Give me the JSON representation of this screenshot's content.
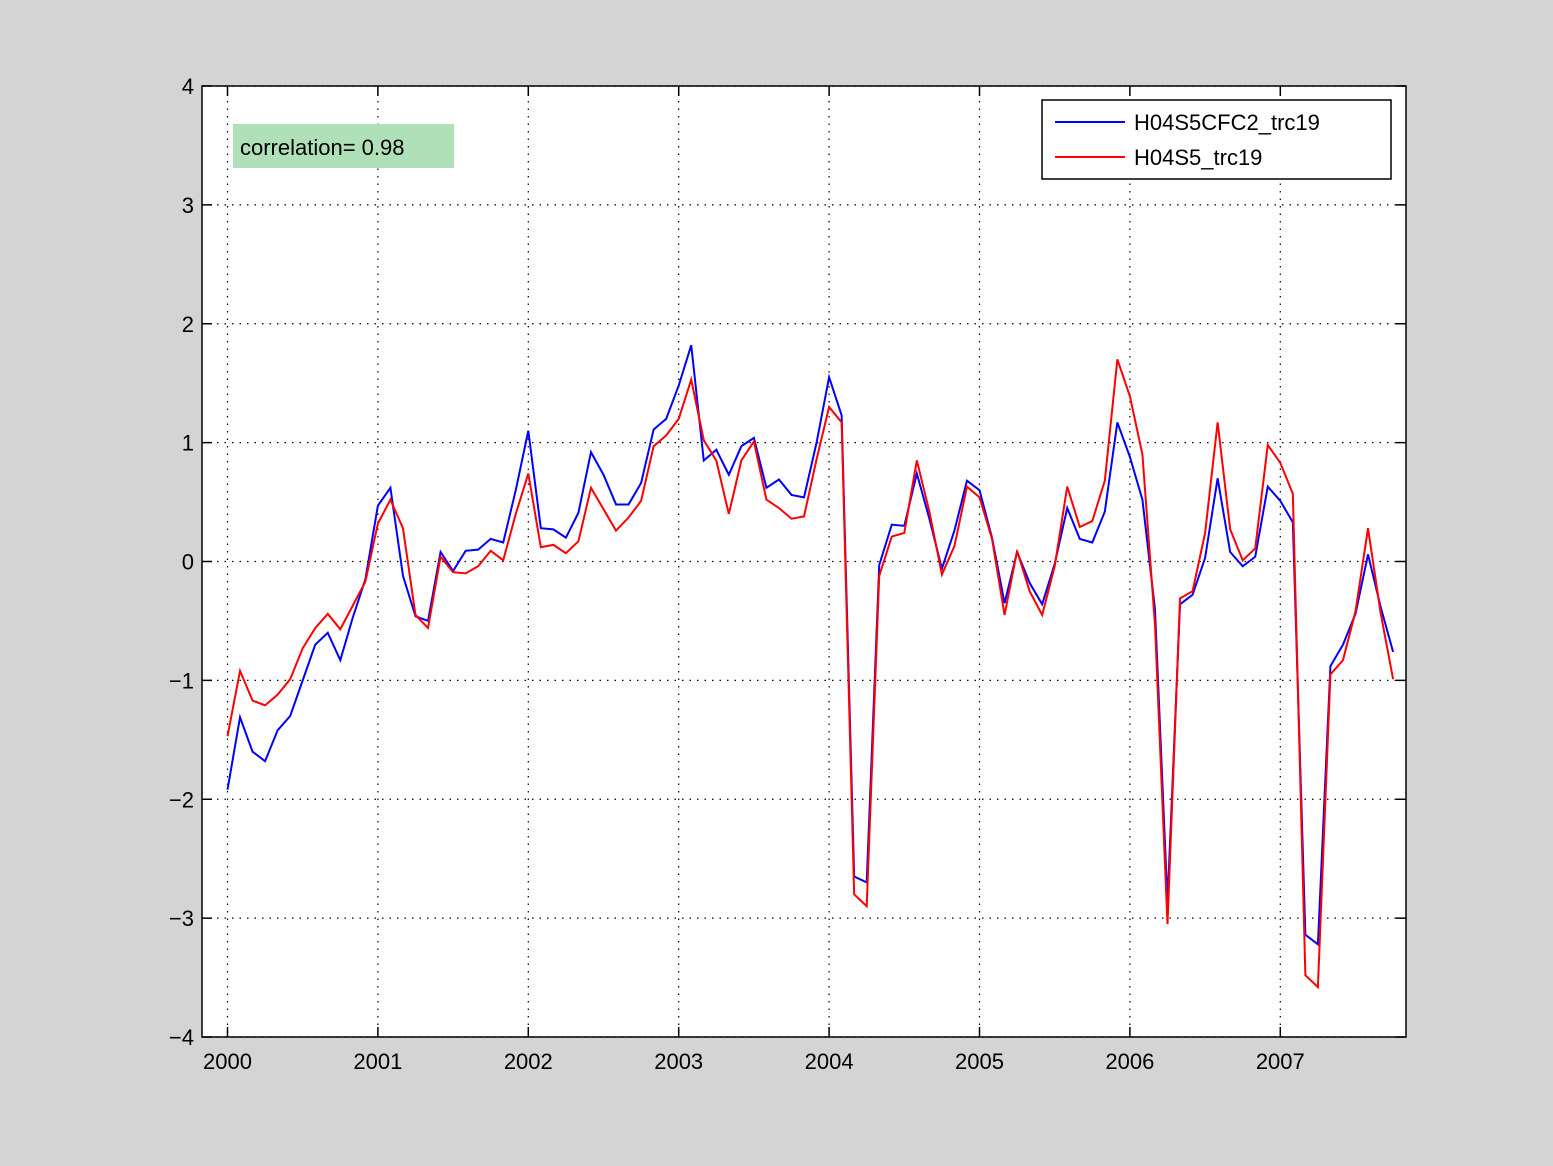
{
  "chart_data": {
    "type": "line",
    "xlim": [
      2000,
      2007.83
    ],
    "ylim": [
      -4,
      4
    ],
    "x_ticks": [
      2000,
      2001,
      2002,
      2003,
      2004,
      2005,
      2006,
      2007
    ],
    "x_tick_labels": [
      "2000",
      "2001",
      "2002",
      "2003",
      "2004",
      "2005",
      "2006",
      "2007"
    ],
    "y_ticks": [
      -4,
      -3,
      -2,
      -1,
      0,
      1,
      2,
      3,
      4
    ],
    "y_tick_labels": [
      "−4",
      "−3",
      "−2",
      "−1",
      "0",
      "1",
      "2",
      "3",
      "4"
    ],
    "grid": true,
    "legend_position": "top-right",
    "annotation": "correlation= 0.98",
    "annotation_color": "#b0e0b8",
    "series": [
      {
        "name": "H04S5CFC2_trc19",
        "color": "#0000ff",
        "values": [
          -1.92,
          -1.31,
          -1.6,
          -1.68,
          -1.42,
          -1.3,
          -1.0,
          -0.7,
          -0.6,
          -0.83,
          -0.47,
          -0.15,
          0.47,
          0.62,
          -0.12,
          -0.46,
          -0.5,
          0.08,
          -0.08,
          0.09,
          0.1,
          0.19,
          0.16,
          0.6,
          1.1,
          0.28,
          0.27,
          0.2,
          0.41,
          0.92,
          0.73,
          0.48,
          0.48,
          0.66,
          1.11,
          1.2,
          1.48,
          1.82,
          0.85,
          0.94,
          0.73,
          0.97,
          1.04,
          0.62,
          0.69,
          0.56,
          0.54,
          1.0,
          1.55,
          1.23,
          -2.65,
          -2.7,
          -0.03,
          0.31,
          0.3,
          0.74,
          0.36,
          -0.06,
          0.26,
          0.68,
          0.6,
          0.2,
          -0.35,
          0.08,
          -0.18,
          -0.36,
          -0.02,
          0.45,
          0.19,
          0.16,
          0.42,
          1.17,
          0.88,
          0.52,
          -0.4,
          -2.87,
          -0.36,
          -0.28,
          0.03,
          0.7,
          0.08,
          -0.04,
          0.04,
          0.63,
          0.51,
          0.33,
          -3.14,
          -3.22,
          -0.88,
          -0.7,
          -0.44,
          0.06,
          -0.38,
          -0.76
        ]
      },
      {
        "name": "H04S5_trc19",
        "color": "#ff0000",
        "values": [
          -1.47,
          -0.92,
          -1.17,
          -1.21,
          -1.12,
          -0.99,
          -0.73,
          -0.56,
          -0.44,
          -0.57,
          -0.37,
          -0.17,
          0.32,
          0.52,
          0.28,
          -0.45,
          -0.56,
          0.04,
          -0.09,
          -0.1,
          -0.04,
          0.09,
          0.01,
          0.4,
          0.74,
          0.12,
          0.14,
          0.07,
          0.17,
          0.62,
          0.44,
          0.26,
          0.37,
          0.51,
          0.97,
          1.06,
          1.2,
          1.53,
          1.02,
          0.85,
          0.4,
          0.85,
          1.01,
          0.52,
          0.45,
          0.36,
          0.38,
          0.86,
          1.3,
          1.17,
          -2.8,
          -2.9,
          -0.12,
          0.21,
          0.24,
          0.85,
          0.42,
          -0.11,
          0.13,
          0.63,
          0.54,
          0.19,
          -0.45,
          0.09,
          -0.25,
          -0.45,
          -0.04,
          0.63,
          0.29,
          0.34,
          0.68,
          1.7,
          1.39,
          0.9,
          -0.53,
          -3.05,
          -0.31,
          -0.25,
          0.24,
          1.17,
          0.27,
          0.01,
          0.11,
          0.98,
          0.83,
          0.57,
          -3.48,
          -3.58,
          -0.95,
          -0.83,
          -0.42,
          0.28,
          -0.43,
          -0.99
        ]
      }
    ]
  }
}
